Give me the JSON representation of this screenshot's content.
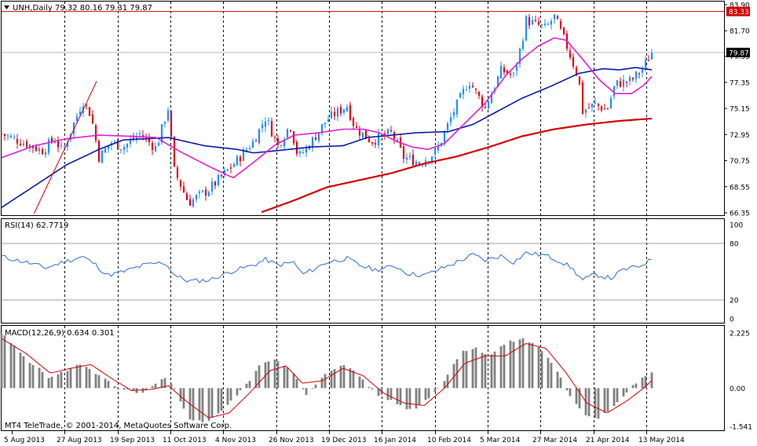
{
  "header": {
    "symbol_line": "UNH,Daily  79.32 80.16 79.31 79.87"
  },
  "footer": {
    "copyright": "MT4 TeleTrade, © 2001-2014, MetaQuotes Software Corp."
  },
  "colors": {
    "background": "#ffffff",
    "grid": "#000000",
    "bull_candle": "#1e90ff",
    "bear_candle": "#e0001b",
    "ma_fast": "#e020d0",
    "ma_mid": "#0a1aa8",
    "ma_slow": "#d40000",
    "trendline": "#d40000",
    "resistance": "#d40000",
    "rsi_line": "#2b6fd6",
    "macd_hist": "#808080",
    "macd_signal": "#d40000",
    "price_tag_bg": "#000000",
    "resistance_tag_bg": "#d40000"
  },
  "chart_data": [
    {
      "type": "line",
      "subtype": "candlestick",
      "name": "price",
      "ylim": [
        66.35,
        83.9
      ],
      "y_ticks": [
        "83.90",
        "81.70",
        "79.55",
        "77.35",
        "75.15",
        "72.95",
        "70.75",
        "68.55",
        "66.35"
      ],
      "current_price": "79.87",
      "resistance_level": "83.33",
      "x_ticks": [
        "5 Aug 2013",
        "27 Aug 2013",
        "19 Sep 2013",
        "11 Oct 2013",
        "4 Nov 2013",
        "26 Nov 2013",
        "19 Dec 2013",
        "16 Jan 2014",
        "10 Feb 2014",
        "5 Mar 2014",
        "27 Mar 2014",
        "21 Apr 2014",
        "13 May 2014"
      ],
      "trendline": {
        "from": [
          0.4,
          66.3
        ],
        "to": [
          1.17,
          77.45
        ]
      },
      "close_anchors": [
        [
          0,
          73.0
        ],
        [
          0.3,
          72.2
        ],
        [
          0.5,
          71.6
        ],
        [
          0.65,
          72.6
        ],
        [
          0.75,
          71.5
        ],
        [
          1.0,
          75.8
        ],
        [
          1.1,
          74.6
        ],
        [
          1.2,
          71.0
        ],
        [
          1.35,
          72.3
        ],
        [
          1.5,
          71.9
        ],
        [
          1.7,
          73.0
        ],
        [
          1.9,
          71.8
        ],
        [
          2.05,
          75.2
        ],
        [
          2.12,
          70.0
        ],
        [
          2.3,
          67.2
        ],
        [
          2.55,
          68.3
        ],
        [
          2.85,
          70.4
        ],
        [
          3.1,
          72.4
        ],
        [
          3.25,
          74.4
        ],
        [
          3.4,
          72.0
        ],
        [
          3.55,
          73.8
        ],
        [
          3.65,
          71.0
        ],
        [
          3.8,
          72.2
        ],
        [
          4.0,
          74.2
        ],
        [
          4.25,
          75.4
        ],
        [
          4.35,
          73.5
        ],
        [
          4.55,
          72.4
        ],
        [
          4.8,
          73.1
        ],
        [
          4.95,
          71.0
        ],
        [
          5.15,
          70.6
        ],
        [
          5.35,
          71.5
        ],
        [
          5.55,
          74.7
        ],
        [
          5.75,
          77.5
        ],
        [
          5.95,
          75.2
        ],
        [
          6.15,
          78.4
        ],
        [
          6.3,
          77.9
        ],
        [
          6.4,
          80.7
        ],
        [
          6.45,
          82.6
        ],
        [
          6.7,
          81.9
        ],
        [
          6.8,
          82.9
        ],
        [
          6.95,
          80.5
        ],
        [
          7.1,
          77.7
        ],
        [
          7.15,
          74.9
        ],
        [
          7.3,
          75.5
        ],
        [
          7.45,
          75.0
        ],
        [
          7.55,
          77.2
        ],
        [
          7.75,
          77.5
        ],
        [
          7.9,
          78.6
        ],
        [
          8.0,
          79.87
        ]
      ],
      "ma_fast_anchors": [
        [
          0,
          71.0
        ],
        [
          0.4,
          72.0
        ],
        [
          0.8,
          72.6
        ],
        [
          1.2,
          72.9
        ],
        [
          1.6,
          72.8
        ],
        [
          1.9,
          72.7
        ],
        [
          2.2,
          71.5
        ],
        [
          2.6,
          70.1
        ],
        [
          2.85,
          69.3
        ],
        [
          3.1,
          70.6
        ],
        [
          3.35,
          72.0
        ],
        [
          3.6,
          72.9
        ],
        [
          3.9,
          73.1
        ],
        [
          4.2,
          73.4
        ],
        [
          4.45,
          73.4
        ],
        [
          4.65,
          73.1
        ],
        [
          4.85,
          72.4
        ],
        [
          5.05,
          71.9
        ],
        [
          5.25,
          71.7
        ],
        [
          5.45,
          72.2
        ],
        [
          5.7,
          73.9
        ],
        [
          5.95,
          75.6
        ],
        [
          6.2,
          77.9
        ],
        [
          6.4,
          79.3
        ],
        [
          6.6,
          80.4
        ],
        [
          6.8,
          81.1
        ],
        [
          6.95,
          80.9
        ],
        [
          7.15,
          79.3
        ],
        [
          7.35,
          77.6
        ],
        [
          7.55,
          76.4
        ],
        [
          7.75,
          76.4
        ],
        [
          7.9,
          77.1
        ],
        [
          8.0,
          77.85
        ]
      ],
      "ma_mid_anchors": [
        [
          0,
          66.8
        ],
        [
          0.4,
          68.6
        ],
        [
          0.8,
          70.4
        ],
        [
          1.2,
          71.7
        ],
        [
          1.5,
          72.5
        ],
        [
          1.8,
          72.6
        ],
        [
          2.05,
          72.7
        ],
        [
          2.5,
          72.0
        ],
        [
          2.9,
          71.7
        ],
        [
          3.1,
          71.4
        ],
        [
          3.4,
          71.6
        ],
        [
          3.8,
          71.9
        ],
        [
          4.2,
          72.0
        ],
        [
          4.5,
          72.7
        ],
        [
          4.8,
          72.9
        ],
        [
          5.1,
          73.1
        ],
        [
          5.5,
          73.2
        ],
        [
          5.8,
          73.8
        ],
        [
          6.1,
          74.9
        ],
        [
          6.4,
          76.0
        ],
        [
          6.75,
          77.0
        ],
        [
          7.1,
          78.1
        ],
        [
          7.4,
          78.5
        ],
        [
          7.6,
          78.4
        ],
        [
          7.8,
          78.6
        ],
        [
          8.0,
          78.4
        ]
      ],
      "ma_slow_anchors": [
        [
          3.2,
          66.4
        ],
        [
          3.6,
          67.4
        ],
        [
          4.0,
          68.5
        ],
        [
          4.4,
          69.1
        ],
        [
          4.8,
          69.7
        ],
        [
          5.2,
          70.5
        ],
        [
          5.6,
          71.1
        ],
        [
          6.0,
          71.9
        ],
        [
          6.4,
          72.8
        ],
        [
          6.8,
          73.4
        ],
        [
          7.2,
          73.8
        ],
        [
          7.6,
          74.1
        ],
        [
          8.0,
          74.3
        ]
      ]
    },
    {
      "type": "line",
      "name": "RSI(14) 62.7719",
      "ylim": [
        0,
        100
      ],
      "y_ticks": [
        "100",
        "80",
        "20",
        "0"
      ],
      "levels": [
        80,
        20
      ],
      "value": "62.7719",
      "anchors": [
        [
          0,
          66
        ],
        [
          0.3,
          60
        ],
        [
          0.55,
          54
        ],
        [
          0.75,
          60
        ],
        [
          1.0,
          66
        ],
        [
          1.15,
          58
        ],
        [
          1.3,
          46
        ],
        [
          1.5,
          50
        ],
        [
          1.75,
          57
        ],
        [
          2.0,
          60
        ],
        [
          2.15,
          45
        ],
        [
          2.3,
          40
        ],
        [
          2.55,
          41
        ],
        [
          2.85,
          51
        ],
        [
          3.1,
          57
        ],
        [
          3.25,
          63
        ],
        [
          3.4,
          57
        ],
        [
          3.6,
          60
        ],
        [
          3.7,
          47
        ],
        [
          3.85,
          53
        ],
        [
          4.0,
          60
        ],
        [
          4.25,
          64
        ],
        [
          4.4,
          57
        ],
        [
          4.6,
          52
        ],
        [
          4.85,
          56
        ],
        [
          5.0,
          48
        ],
        [
          5.2,
          46
        ],
        [
          5.4,
          53
        ],
        [
          5.6,
          60
        ],
        [
          5.8,
          68
        ],
        [
          5.95,
          62
        ],
        [
          6.15,
          67
        ],
        [
          6.3,
          60
        ],
        [
          6.45,
          70
        ],
        [
          6.7,
          67
        ],
        [
          6.85,
          62
        ],
        [
          7.0,
          55
        ],
        [
          7.15,
          41
        ],
        [
          7.3,
          47
        ],
        [
          7.5,
          43
        ],
        [
          7.65,
          52
        ],
        [
          7.85,
          56
        ],
        [
          8.0,
          63
        ]
      ]
    },
    {
      "type": "bar",
      "name": "MACD(12,26,9) 0.634 0.301",
      "ylim": [
        -1.541,
        2.225
      ],
      "y_ticks": [
        "2.225",
        "0.00",
        "-1.541"
      ],
      "value": "0.634",
      "signal_value": "0.301",
      "hist_anchors": [
        [
          0,
          2.2
        ],
        [
          0.3,
          1.2
        ],
        [
          0.6,
          0.4
        ],
        [
          0.85,
          0.8
        ],
        [
          1.0,
          1.0
        ],
        [
          1.2,
          0.5
        ],
        [
          1.45,
          -0.05
        ],
        [
          1.75,
          -0.2
        ],
        [
          2.0,
          0.4
        ],
        [
          2.1,
          0.1
        ],
        [
          2.3,
          -1.2
        ],
        [
          2.5,
          -1.4
        ],
        [
          2.75,
          -0.8
        ],
        [
          3.0,
          0.1
        ],
        [
          3.2,
          1.0
        ],
        [
          3.35,
          1.2
        ],
        [
          3.55,
          0.8
        ],
        [
          3.75,
          -0.3
        ],
        [
          4.0,
          0.6
        ],
        [
          4.2,
          1.0
        ],
        [
          4.4,
          0.5
        ],
        [
          4.6,
          -0.2
        ],
        [
          4.85,
          -0.6
        ],
        [
          5.05,
          -0.9
        ],
        [
          5.25,
          -0.4
        ],
        [
          5.45,
          0.3
        ],
        [
          5.65,
          1.5
        ],
        [
          5.85,
          1.6
        ],
        [
          6.0,
          1.3
        ],
        [
          6.2,
          1.8
        ],
        [
          6.4,
          2.0
        ],
        [
          6.6,
          1.7
        ],
        [
          6.8,
          0.9
        ],
        [
          7.0,
          -0.4
        ],
        [
          7.2,
          -1.1
        ],
        [
          7.35,
          -1.2
        ],
        [
          7.6,
          -0.5
        ],
        [
          7.8,
          0.2
        ],
        [
          8.0,
          0.634
        ]
      ],
      "signal_anchors": [
        [
          0,
          2.0
        ],
        [
          0.3,
          1.4
        ],
        [
          0.6,
          0.6
        ],
        [
          0.85,
          0.8
        ],
        [
          1.1,
          0.95
        ],
        [
          1.35,
          0.4
        ],
        [
          1.6,
          -0.1
        ],
        [
          1.85,
          -0.05
        ],
        [
          2.05,
          0.1
        ],
        [
          2.3,
          -0.6
        ],
        [
          2.55,
          -1.2
        ],
        [
          2.8,
          -1.0
        ],
        [
          3.05,
          -0.2
        ],
        [
          3.3,
          0.7
        ],
        [
          3.5,
          0.9
        ],
        [
          3.7,
          0.2
        ],
        [
          3.95,
          0.3
        ],
        [
          4.2,
          0.8
        ],
        [
          4.45,
          0.5
        ],
        [
          4.7,
          -0.2
        ],
        [
          4.95,
          -0.6
        ],
        [
          5.2,
          -0.7
        ],
        [
          5.45,
          0.0
        ],
        [
          5.7,
          1.0
        ],
        [
          5.95,
          1.3
        ],
        [
          6.2,
          1.3
        ],
        [
          6.45,
          1.8
        ],
        [
          6.7,
          1.6
        ],
        [
          6.95,
          0.6
        ],
        [
          7.2,
          -0.6
        ],
        [
          7.45,
          -1.0
        ],
        [
          7.7,
          -0.5
        ],
        [
          7.9,
          0.0
        ],
        [
          8.0,
          0.301
        ]
      ]
    }
  ]
}
